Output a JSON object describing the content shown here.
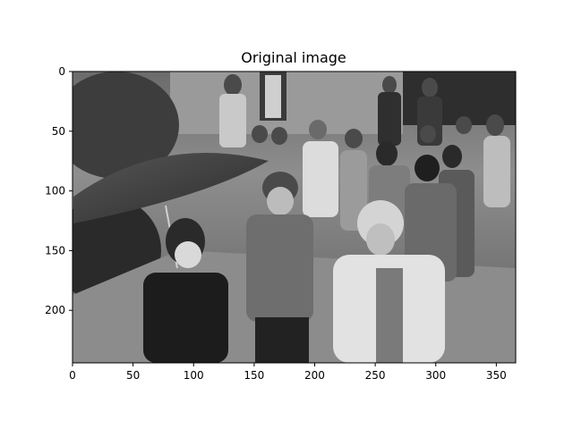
{
  "figure": {
    "title": "Original image"
  },
  "chart_data": {
    "type": "image",
    "title": "Original image",
    "xlabel": "",
    "ylabel": "",
    "xlim": [
      0,
      366
    ],
    "ylim": [
      244,
      0
    ],
    "x_ticks": [
      0,
      50,
      100,
      150,
      200,
      250,
      300,
      350
    ],
    "y_ticks": [
      0,
      50,
      100,
      150,
      200
    ],
    "image": {
      "mode": "grayscale",
      "subject": "group of children walking outdoors, one holding an umbrella"
    },
    "grid": false
  },
  "colors": {
    "background": "#ffffff",
    "axes": "#000000",
    "dark": "#1a1a1a",
    "mid": "#7a7a7a",
    "light": "#d8d8d8"
  }
}
